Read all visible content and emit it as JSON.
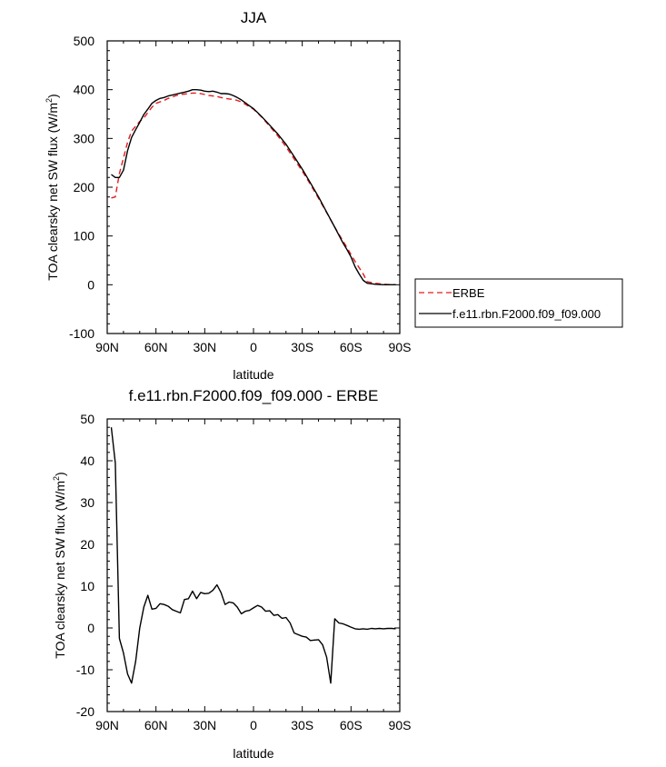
{
  "chart_data": [
    {
      "type": "line",
      "title": "JJA",
      "xlabel": "latitude",
      "ylabel_main": "TOA clearsky net SW flux (W/m",
      "ylabel_sup": "2",
      "ylabel_end": ")",
      "xlim": [
        90,
        -90
      ],
      "ylim": [
        -100,
        500
      ],
      "x_ticks": [
        {
          "value": 90,
          "label": "90N"
        },
        {
          "value": 60,
          "label": "60N"
        },
        {
          "value": 30,
          "label": "30N"
        },
        {
          "value": 0,
          "label": "0"
        },
        {
          "value": -30,
          "label": "30S"
        },
        {
          "value": -60,
          "label": "60S"
        },
        {
          "value": -90,
          "label": "90S"
        }
      ],
      "y_ticks": [
        {
          "value": 500,
          "label": "500"
        },
        {
          "value": 400,
          "label": "400"
        },
        {
          "value": 300,
          "label": "300"
        },
        {
          "value": 200,
          "label": "200"
        },
        {
          "value": 100,
          "label": "100"
        },
        {
          "value": 0,
          "label": "0"
        },
        {
          "value": -100,
          "label": "-100"
        }
      ],
      "legend_position": "right",
      "series": [
        {
          "name": "ERBE",
          "color": "#e41a1c",
          "dash": "dashed",
          "x": [
            87.5,
            85,
            82.5,
            80,
            77.5,
            75,
            72.5,
            70,
            67.5,
            65,
            62.5,
            60,
            57.5,
            55,
            52.5,
            50,
            47.5,
            45,
            42.5,
            40,
            37.5,
            35,
            32.5,
            30,
            27.5,
            25,
            22.5,
            20,
            17.5,
            15,
            12.5,
            10,
            7.5,
            5,
            2.5,
            0,
            -2.5,
            -5,
            -10,
            -15,
            -20,
            -25,
            -30,
            -35,
            -40,
            -45,
            -50,
            -55,
            -57.5,
            -60,
            -62.5,
            -65,
            -67.5,
            -70,
            -75,
            -80,
            -85,
            -87.5
          ],
          "y": [
            178,
            180,
            228,
            260,
            292,
            315,
            325,
            335,
            342,
            353,
            364,
            372,
            375,
            378,
            382,
            385,
            388,
            390,
            391,
            392,
            393,
            393,
            392,
            390,
            388,
            387,
            386,
            384,
            382,
            381,
            380,
            378,
            375,
            370,
            365,
            360,
            352,
            344,
            325,
            305,
            283,
            258,
            233,
            206,
            177,
            148,
            118,
            90,
            76,
            62,
            48,
            35,
            22,
            6,
            3,
            1,
            0,
            0
          ]
        },
        {
          "name": "f.e11.rbn.F2000.f09_f09.000",
          "color": "#000000",
          "dash": "solid",
          "x": [
            87.5,
            85,
            82.5,
            80,
            77.5,
            75,
            72.5,
            70,
            67.5,
            65,
            62.5,
            60,
            57.5,
            55,
            52.5,
            50,
            47.5,
            45,
            42.5,
            40,
            37.5,
            35,
            32.5,
            30,
            27.5,
            25,
            22.5,
            20,
            17.5,
            15,
            12.5,
            10,
            7.5,
            5,
            2.5,
            0,
            -2.5,
            -5,
            -10,
            -15,
            -20,
            -25,
            -30,
            -35,
            -40,
            -45,
            -50,
            -55,
            -57.5,
            -60,
            -62.5,
            -65,
            -67.5,
            -70,
            -75,
            -80,
            -85,
            -87.5
          ],
          "y": [
            226,
            220,
            220,
            235,
            275,
            302,
            318,
            333,
            349,
            360,
            372,
            378,
            382,
            384,
            387,
            389,
            391,
            393,
            395,
            397,
            400,
            400,
            399,
            397,
            396,
            397,
            395,
            392,
            392,
            391,
            388,
            384,
            379,
            373,
            367,
            361,
            353,
            345,
            327,
            309,
            288,
            263,
            237,
            209,
            180,
            149,
            118,
            86,
            72,
            57,
            37,
            22,
            9,
            3,
            1,
            0,
            0,
            0
          ]
        }
      ]
    },
    {
      "type": "line",
      "title": "f.e11.rbn.F2000.f09_f09.000 - ERBE",
      "xlabel": "latitude",
      "ylabel_main": "TOA clearsky net SW flux (W/m",
      "ylabel_sup": "2",
      "ylabel_end": ")",
      "xlim": [
        90,
        -90
      ],
      "ylim": [
        -20,
        50
      ],
      "x_ticks": [
        {
          "value": 90,
          "label": "90N"
        },
        {
          "value": 60,
          "label": "60N"
        },
        {
          "value": 30,
          "label": "30N"
        },
        {
          "value": 0,
          "label": "0"
        },
        {
          "value": -30,
          "label": "30S"
        },
        {
          "value": -60,
          "label": "60S"
        },
        {
          "value": -90,
          "label": "90S"
        }
      ],
      "y_ticks": [
        {
          "value": 50,
          "label": "50"
        },
        {
          "value": 40,
          "label": "40"
        },
        {
          "value": 30,
          "label": "30"
        },
        {
          "value": 20,
          "label": "20"
        },
        {
          "value": 10,
          "label": "10"
        },
        {
          "value": 0,
          "label": "0"
        },
        {
          "value": -10,
          "label": "-10"
        },
        {
          "value": -20,
          "label": "-20"
        }
      ],
      "series": [
        {
          "color": "#000000",
          "dash": "solid",
          "x": [
            87.5,
            85,
            82.5,
            80,
            77.5,
            75,
            72.5,
            70,
            67.5,
            65,
            62.5,
            60,
            57.5,
            55,
            52.5,
            50,
            47.5,
            45,
            42.5,
            40,
            37.5,
            35,
            32.5,
            30,
            27.5,
            25,
            22.5,
            20,
            17.5,
            15,
            12.5,
            10,
            7.5,
            5,
            2.5,
            0,
            -2.5,
            -5,
            -7.5,
            -10,
            -12.5,
            -15,
            -17.5,
            -20,
            -22.5,
            -25,
            -27.5,
            -30,
            -32.5,
            -35,
            -37.5,
            -40,
            -42.5,
            -45,
            -47.5,
            -50,
            -52.5,
            -55,
            -57.5,
            -60,
            -62.5,
            -65,
            -67.5,
            -70,
            -72.5,
            -75,
            -77.5,
            -80,
            -82.5,
            -85,
            -87.5
          ],
          "y": [
            48,
            39.5,
            -2.5,
            -6,
            -11,
            -13.2,
            -8,
            0,
            5,
            7.8,
            4.5,
            4.7,
            5.8,
            5.6,
            5.2,
            4.4,
            4,
            3.6,
            6.8,
            7,
            8.8,
            7,
            8.5,
            8.2,
            8.3,
            9,
            10.3,
            8.5,
            5.6,
            6.2,
            6,
            5,
            3.4,
            4,
            4.2,
            4.8,
            5.4,
            5,
            4,
            4.1,
            3,
            3.2,
            2.3,
            2.5,
            1.2,
            -1.2,
            -1.6,
            -2,
            -2.2,
            -3,
            -2.9,
            -2.8,
            -4,
            -7,
            -13.2,
            2.2,
            1.2,
            1,
            0.6,
            0.2,
            -0.2,
            -0.3,
            -0.2,
            -0.3,
            -0.1,
            -0.2,
            -0.1,
            -0.2,
            -0.1,
            -0.1,
            -0.2
          ]
        }
      ]
    }
  ]
}
